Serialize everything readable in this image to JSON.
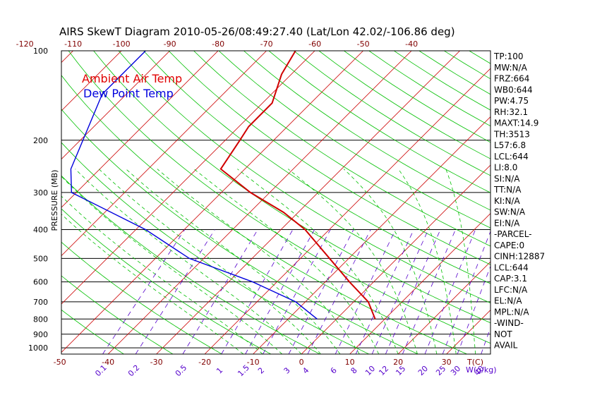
{
  "chart_data": {
    "type": "line",
    "title": "AIRS SkewT Diagram 2010-05-26/08:49:27.40 (Lat/Lon 42.02/-106.86 deg)",
    "ylabel": "PRESSURE (MB)",
    "x_unit_label": "T(C)",
    "mixing_ratio_unit_label": "W(g/kg)",
    "y_scale": "log",
    "ylim": [
      1050,
      100
    ],
    "xlim_bottom": [
      -52,
      38
    ],
    "pressure_ticks": [
      100,
      200,
      300,
      400,
      500,
      600,
      700,
      800,
      900,
      1000
    ],
    "bottom_temp_ticks": [
      -50,
      -40,
      -30,
      -20,
      -10,
      0,
      10,
      20,
      30
    ],
    "top_temp_ticks": [
      -120,
      -110,
      -100,
      -90,
      -80,
      -70,
      -60,
      -50,
      -40
    ],
    "mixing_ratio_labels": [
      "0.1",
      "0.2",
      "0.5",
      "1",
      "1.5",
      "2",
      "3",
      "4",
      "6",
      "8",
      "10",
      "12",
      "15",
      "20",
      "25",
      "30",
      "40"
    ],
    "legend": [
      {
        "name": "Ambient Air Temp",
        "color": "#e00000"
      },
      {
        "name": "Dew Point Temp",
        "color": "#0000dd"
      }
    ],
    "series": [
      {
        "name": "Ambient Air Temp",
        "color": "#d00000",
        "points": [
          {
            "p": 100,
            "t": -64
          },
          {
            "p": 120,
            "t": -62
          },
          {
            "p": 150,
            "t": -58
          },
          {
            "p": 180,
            "t": -58
          },
          {
            "p": 200,
            "t": -57
          },
          {
            "p": 250,
            "t": -55
          },
          {
            "p": 300,
            "t": -44
          },
          {
            "p": 350,
            "t": -33
          },
          {
            "p": 400,
            "t": -25
          },
          {
            "p": 500,
            "t": -14
          },
          {
            "p": 600,
            "t": -5
          },
          {
            "p": 700,
            "t": 3
          },
          {
            "p": 800,
            "t": 8
          }
        ]
      },
      {
        "name": "Dew Point Temp",
        "color": "#0000dd",
        "points": [
          {
            "p": 100,
            "t": -95
          },
          {
            "p": 140,
            "t": -95
          },
          {
            "p": 250,
            "t": -86
          },
          {
            "p": 300,
            "t": -81
          },
          {
            "p": 400,
            "t": -58
          },
          {
            "p": 500,
            "t": -43
          },
          {
            "p": 600,
            "t": -25
          },
          {
            "p": 700,
            "t": -12
          },
          {
            "p": 800,
            "t": -4
          }
        ]
      }
    ],
    "grid": true,
    "grid_colors": {
      "isotherm": "#cc0000",
      "dry_adiabat": "#00c000",
      "moist_adiabat": "#00c000",
      "mixing_ratio": "#5500cc",
      "isobar": "#000000"
    }
  },
  "side_panel": [
    "TP:100",
    "MW:N/A",
    "FRZ:664",
    "WB0:644",
    "PW:4.75",
    "RH:32.1",
    "MAXT:14.9",
    "TH:3513",
    "L57:6.8",
    "LCL:644",
    "LI:8.0",
    "SI:N/A",
    "TT:N/A",
    "KI:N/A",
    "SW:N/A",
    "EI:N/A",
    "-PARCEL-",
    "CAPE:0",
    "CINH:12887",
    "LCL:644",
    "CAP:3.1",
    "LFC:N/A",
    "EL:N/A",
    "MPL:N/A",
    "-WIND-",
    "NOT",
    "AVAIL"
  ]
}
